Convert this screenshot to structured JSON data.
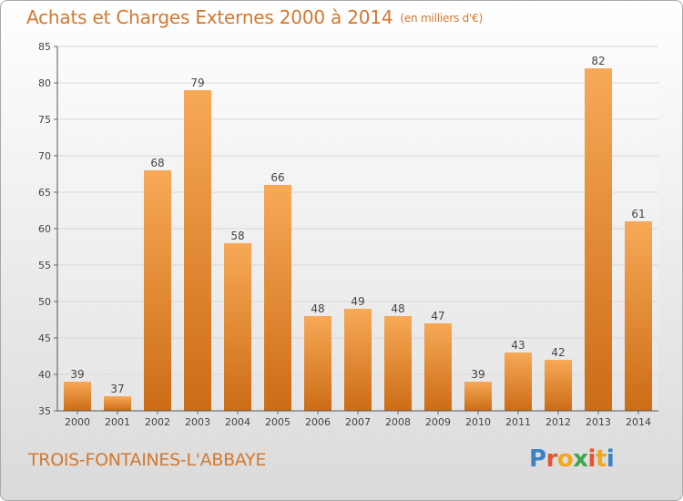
{
  "header": {
    "title": "Achats et Charges Externes 2000 à 2014",
    "unit": "(en milliers d'€)"
  },
  "footer": {
    "commune": "TROIS-FONTAINES-L'ABBAYE",
    "logo_text": "Proxiti"
  },
  "colors": {
    "bar_top": "#f7a957",
    "bar_bottom": "#cc6c16",
    "title": "#d4782e",
    "grid": "#d8d8d8"
  },
  "chart_data": {
    "type": "bar",
    "categories": [
      "2000",
      "2001",
      "2002",
      "2003",
      "2004",
      "2005",
      "2006",
      "2007",
      "2008",
      "2009",
      "2010",
      "2011",
      "2012",
      "2013",
      "2014"
    ],
    "values": [
      39,
      37,
      68,
      79,
      58,
      66,
      48,
      49,
      48,
      47,
      39,
      43,
      42,
      82,
      61
    ],
    "ylim": [
      35,
      85
    ],
    "yticks": [
      35,
      40,
      45,
      50,
      55,
      60,
      65,
      70,
      75,
      80,
      85
    ],
    "grid": true,
    "title": "Achats et Charges Externes 2000 à 2014",
    "xlabel": "",
    "ylabel": ""
  }
}
